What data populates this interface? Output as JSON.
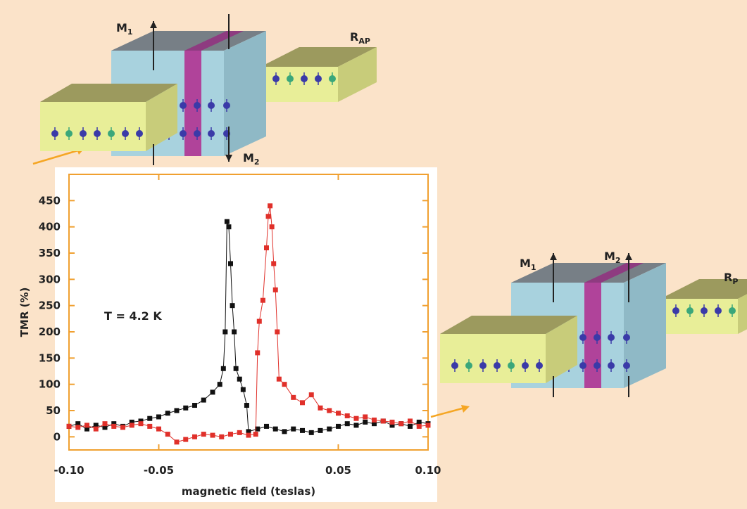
{
  "chart_data": {
    "type": "scatter",
    "xlabel": "magnetic field (teslas)",
    "ylabel": "TMR (%)",
    "annotation": "T = 4.2 K",
    "xlim": [
      -0.1,
      0.1
    ],
    "ylim": [
      -25,
      500
    ],
    "xticks": [
      {
        "value": -0.1,
        "label": "-0.10"
      },
      {
        "value": -0.05,
        "label": "-0.05"
      },
      {
        "value": 0.05,
        "label": "0.05"
      },
      {
        "value": 0.1,
        "label": "0.10"
      }
    ],
    "yticks": [
      0,
      50,
      100,
      150,
      200,
      250,
      300,
      350,
      400,
      450
    ],
    "series": [
      {
        "color": "#111111",
        "x": [
          -0.1,
          -0.095,
          -0.09,
          -0.085,
          -0.08,
          -0.075,
          -0.07,
          -0.065,
          -0.06,
          -0.055,
          -0.05,
          -0.045,
          -0.04,
          -0.035,
          -0.03,
          -0.025,
          -0.02,
          -0.016,
          -0.014,
          -0.013,
          -0.012,
          -0.011,
          -0.01,
          -0.009,
          -0.008,
          -0.007,
          -0.005,
          -0.003,
          -0.001,
          0,
          0.005,
          0.01,
          0.015,
          0.02,
          0.025,
          0.03,
          0.035,
          0.04,
          0.045,
          0.05,
          0.055,
          0.06,
          0.065,
          0.07,
          0.075,
          0.08,
          0.085,
          0.09,
          0.095,
          0.1
        ],
        "values": [
          20,
          25,
          15,
          22,
          18,
          25,
          20,
          28,
          30,
          35,
          38,
          45,
          50,
          55,
          60,
          70,
          85,
          100,
          130,
          200,
          410,
          400,
          330,
          250,
          200,
          130,
          110,
          90,
          60,
          10,
          15,
          20,
          15,
          10,
          15,
          12,
          8,
          12,
          15,
          20,
          25,
          22,
          28,
          25,
          30,
          22,
          25,
          20,
          28,
          25
        ]
      },
      {
        "color": "#e0302a",
        "x": [
          -0.1,
          -0.095,
          -0.09,
          -0.085,
          -0.08,
          -0.075,
          -0.07,
          -0.065,
          -0.06,
          -0.055,
          -0.05,
          -0.045,
          -0.04,
          -0.035,
          -0.03,
          -0.025,
          -0.02,
          -0.015,
          -0.01,
          -0.005,
          0,
          0.004,
          0.005,
          0.006,
          0.008,
          0.01,
          0.011,
          0.012,
          0.013,
          0.014,
          0.015,
          0.016,
          0.017,
          0.02,
          0.025,
          0.03,
          0.035,
          0.04,
          0.045,
          0.05,
          0.055,
          0.06,
          0.065,
          0.07,
          0.075,
          0.08,
          0.085,
          0.09,
          0.095,
          0.1
        ],
        "values": [
          20,
          18,
          22,
          15,
          25,
          20,
          18,
          22,
          25,
          20,
          15,
          5,
          -10,
          -5,
          0,
          5,
          3,
          0,
          5,
          8,
          3,
          5,
          160,
          220,
          260,
          360,
          420,
          440,
          400,
          330,
          280,
          200,
          110,
          100,
          75,
          65,
          80,
          55,
          50,
          45,
          40,
          35,
          38,
          32,
          30,
          28,
          25,
          30,
          20,
          22
        ]
      }
    ]
  },
  "diagrams": [
    {
      "labels": [
        {
          "text": "M",
          "sub": "1"
        },
        {
          "text": "M",
          "sub": "2"
        },
        {
          "text": "R",
          "sub": "AP"
        }
      ]
    },
    {
      "labels": [
        {
          "text": "M",
          "sub": "1"
        },
        {
          "text": "M",
          "sub": "2"
        },
        {
          "text": "R",
          "sub": "P"
        }
      ]
    }
  ]
}
